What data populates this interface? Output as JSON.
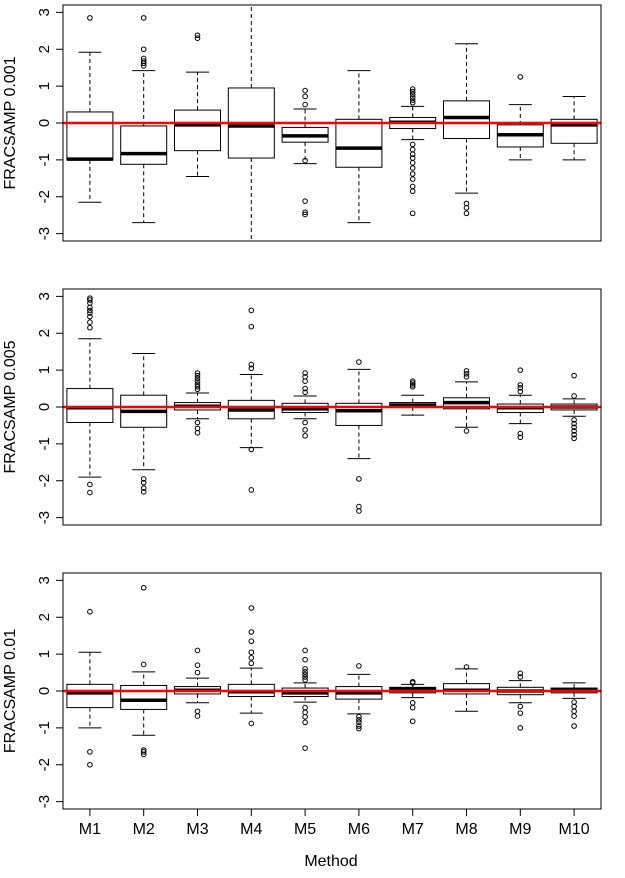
{
  "chart_data": {
    "type": "boxplot",
    "xlabel": "Method",
    "categories": [
      "M1",
      "M2",
      "M3",
      "M4",
      "M5",
      "M6",
      "M7",
      "M8",
      "M9",
      "M10"
    ],
    "ylim": [
      -3.2,
      3.2
    ],
    "yticks": [
      -3,
      -2,
      -1,
      0,
      1,
      2,
      3
    ],
    "reference_line": {
      "y": 0,
      "color": "#ff0000"
    },
    "panels": [
      {
        "ylabel": "FRACSAMP 0.001",
        "boxes": [
          {
            "q1": -1.0,
            "median": -0.98,
            "q3": 0.3,
            "whisker_low": -2.15,
            "whisker_high": 1.92,
            "outliers": [
              2.85
            ]
          },
          {
            "q1": -1.12,
            "median": -0.83,
            "q3": -0.08,
            "whisker_low": -2.7,
            "whisker_high": 1.42,
            "outliers": [
              1.55,
              1.62,
              1.68,
              1.75,
              2.0,
              2.85
            ]
          },
          {
            "q1": -0.75,
            "median": -0.05,
            "q3": 0.35,
            "whisker_low": -1.45,
            "whisker_high": 1.38,
            "outliers": [
              2.3,
              2.38
            ]
          },
          {
            "q1": -0.95,
            "median": -0.08,
            "q3": 0.95,
            "whisker_low": -3.2,
            "whisker_high": 3.2,
            "outliers": []
          },
          {
            "q1": -0.52,
            "median": -0.35,
            "q3": -0.12,
            "whisker_low": -1.1,
            "whisker_high": 0.38,
            "outliers": [
              0.5,
              0.72,
              0.88,
              -1.02,
              -2.12,
              -2.42,
              -2.48
            ]
          },
          {
            "q1": -1.2,
            "median": -0.68,
            "q3": 0.1,
            "whisker_low": -2.7,
            "whisker_high": 1.42,
            "outliers": []
          },
          {
            "q1": -0.15,
            "median": 0.02,
            "q3": 0.15,
            "whisker_low": -0.45,
            "whisker_high": 0.45,
            "outliers": [
              0.55,
              0.62,
              0.7,
              0.78,
              0.85,
              0.92,
              -0.58,
              -0.72,
              -0.85,
              -0.95,
              -1.08,
              -1.22,
              -1.38,
              -1.52,
              -1.72,
              -1.85,
              -2.45
            ]
          },
          {
            "q1": -0.42,
            "median": 0.15,
            "q3": 0.6,
            "whisker_low": -1.9,
            "whisker_high": 2.15,
            "outliers": [
              -2.18,
              -2.3,
              -2.45
            ]
          },
          {
            "q1": -0.65,
            "median": -0.32,
            "q3": -0.05,
            "whisker_low": -1.0,
            "whisker_high": 0.5,
            "outliers": [
              1.25
            ]
          },
          {
            "q1": -0.55,
            "median": -0.05,
            "q3": 0.1,
            "whisker_low": -1.0,
            "whisker_high": 0.72,
            "outliers": []
          }
        ]
      },
      {
        "ylabel": "FRACSAMP 0.005",
        "boxes": [
          {
            "q1": -0.42,
            "median": -0.02,
            "q3": 0.5,
            "whisker_low": -1.9,
            "whisker_high": 1.85,
            "outliers": [
              2.15,
              2.3,
              2.45,
              2.55,
              2.62,
              2.7,
              2.82,
              2.9,
              2.95,
              -2.1,
              -2.32
            ]
          },
          {
            "q1": -0.55,
            "median": -0.12,
            "q3": 0.32,
            "whisker_low": -1.7,
            "whisker_high": 1.45,
            "outliers": [
              -1.95,
              -2.05,
              -2.2,
              -2.3
            ]
          },
          {
            "q1": -0.08,
            "median": 0.02,
            "q3": 0.12,
            "whisker_low": -0.32,
            "whisker_high": 0.38,
            "outliers": [
              0.48,
              0.55,
              0.62,
              0.7,
              0.78,
              0.85,
              0.92,
              -0.42,
              -0.58,
              -0.7
            ]
          },
          {
            "q1": -0.32,
            "median": -0.08,
            "q3": 0.18,
            "whisker_low": -1.1,
            "whisker_high": 0.88,
            "outliers": [
              1.05,
              1.15,
              2.18,
              2.62,
              -1.15,
              -2.25
            ]
          },
          {
            "q1": -0.15,
            "median": -0.05,
            "q3": 0.1,
            "whisker_low": -0.32,
            "whisker_high": 0.3,
            "outliers": [
              0.4,
              0.5,
              0.7,
              0.82,
              0.92,
              -0.42,
              -0.62,
              -0.78
            ]
          },
          {
            "q1": -0.5,
            "median": -0.1,
            "q3": 0.1,
            "whisker_low": -1.4,
            "whisker_high": 1.02,
            "outliers": [
              1.22,
              -1.95,
              -2.7,
              -2.82
            ]
          },
          {
            "q1": 0.0,
            "median": 0.05,
            "q3": 0.12,
            "whisker_low": -0.22,
            "whisker_high": 0.32,
            "outliers": [
              0.55,
              0.6,
              0.65,
              0.7
            ]
          },
          {
            "q1": -0.05,
            "median": 0.12,
            "q3": 0.25,
            "whisker_low": -0.55,
            "whisker_high": 0.68,
            "outliers": [
              0.82,
              0.9,
              0.98,
              -0.65
            ]
          },
          {
            "q1": -0.15,
            "median": -0.02,
            "q3": 0.08,
            "whisker_low": -0.45,
            "whisker_high": 0.32,
            "outliers": [
              0.42,
              0.52,
              0.6,
              1.0,
              -0.72,
              -0.82
            ]
          },
          {
            "q1": -0.08,
            "median": 0.0,
            "q3": 0.08,
            "whisker_low": -0.25,
            "whisker_high": 0.22,
            "outliers": [
              0.3,
              0.85,
              -0.35,
              -0.45,
              -0.55,
              -0.65,
              -0.75,
              -0.85
            ]
          }
        ]
      },
      {
        "ylabel": "FRACSAMP 0.01",
        "boxes": [
          {
            "q1": -0.45,
            "median": -0.05,
            "q3": 0.18,
            "whisker_low": -1.0,
            "whisker_high": 1.05,
            "outliers": [
              2.15,
              -1.65,
              -2.0
            ]
          },
          {
            "q1": -0.5,
            "median": -0.25,
            "q3": 0.15,
            "whisker_low": -1.2,
            "whisker_high": 0.52,
            "outliers": [
              0.72,
              2.8,
              -1.6,
              -1.65,
              -1.72
            ]
          },
          {
            "q1": -0.08,
            "median": 0.02,
            "q3": 0.12,
            "whisker_low": -0.32,
            "whisker_high": 0.35,
            "outliers": [
              0.5,
              0.7,
              1.1,
              -0.55,
              -0.68
            ]
          },
          {
            "q1": -0.15,
            "median": -0.02,
            "q3": 0.18,
            "whisker_low": -0.6,
            "whisker_high": 0.62,
            "outliers": [
              0.75,
              0.9,
              1.05,
              1.35,
              1.6,
              2.25,
              -0.88
            ]
          },
          {
            "q1": -0.15,
            "median": -0.05,
            "q3": 0.08,
            "whisker_low": -0.3,
            "whisker_high": 0.22,
            "outliers": [
              0.3,
              0.38,
              0.45,
              0.52,
              0.6,
              0.85,
              1.1,
              -0.45,
              -0.58,
              -0.7,
              -0.85,
              -1.55
            ]
          },
          {
            "q1": -0.22,
            "median": -0.05,
            "q3": 0.12,
            "whisker_low": -0.62,
            "whisker_high": 0.45,
            "outliers": [
              0.68,
              -0.7,
              -0.78,
              -0.85,
              -0.95,
              -1.02
            ]
          },
          {
            "q1": -0.05,
            "median": 0.05,
            "q3": 0.1,
            "whisker_low": -0.18,
            "whisker_high": 0.18,
            "outliers": [
              0.22,
              0.25,
              -0.32,
              -0.45,
              -0.82
            ]
          },
          {
            "q1": -0.08,
            "median": 0.02,
            "q3": 0.2,
            "whisker_low": -0.55,
            "whisker_high": 0.6,
            "outliers": [
              0.65
            ]
          },
          {
            "q1": -0.1,
            "median": 0.0,
            "q3": 0.1,
            "whisker_low": -0.32,
            "whisker_high": 0.28,
            "outliers": [
              0.38,
              0.48,
              -0.42,
              -0.6,
              -1.0
            ]
          },
          {
            "q1": -0.05,
            "median": 0.02,
            "q3": 0.08,
            "whisker_low": -0.2,
            "whisker_high": 0.22,
            "outliers": [
              -0.3,
              -0.42,
              -0.55,
              -0.68,
              -0.95
            ]
          }
        ]
      }
    ]
  }
}
